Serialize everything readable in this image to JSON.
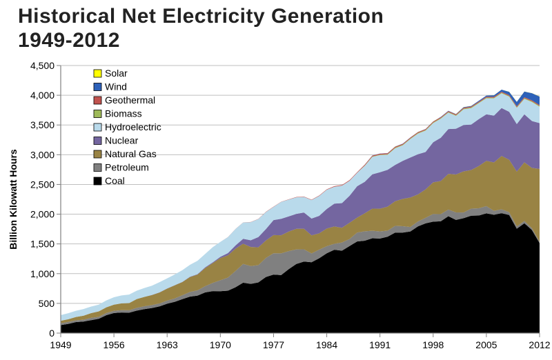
{
  "title": "Historical Net Electricity Generation\n1949-2012",
  "chart": {
    "type": "area",
    "background_color": "#ffffff",
    "plot_background_color": "#ffffff",
    "ylabel": "Billion Kilowatt Hours",
    "label_fontsize": 14,
    "label_fontweight": "bold",
    "xlim": [
      1949,
      2012
    ],
    "ylim": [
      0,
      4500
    ],
    "ytick_step": 500,
    "xtick_step": 7,
    "grid_color": "#bfbfbf",
    "axis_color": "#808080",
    "tick_color": "#808080",
    "tick_font": "Arial",
    "tick_fontsize": 14,
    "years": [
      1949,
      1950,
      1951,
      1952,
      1953,
      1954,
      1955,
      1956,
      1957,
      1958,
      1959,
      1960,
      1961,
      1962,
      1963,
      1964,
      1965,
      1966,
      1967,
      1968,
      1969,
      1970,
      1971,
      1972,
      1973,
      1974,
      1975,
      1976,
      1977,
      1978,
      1979,
      1980,
      1981,
      1982,
      1983,
      1984,
      1985,
      1986,
      1987,
      1988,
      1989,
      1990,
      1991,
      1992,
      1993,
      1994,
      1995,
      1996,
      1997,
      1998,
      1999,
      2000,
      2001,
      2002,
      2003,
      2004,
      2005,
      2006,
      2007,
      2008,
      2009,
      2010,
      2011,
      2012
    ],
    "series": [
      {
        "name": "Coal",
        "color": "#000000",
        "values": [
          135,
          155,
          185,
          195,
          218,
          240,
          301,
          338,
          346,
          344,
          378,
          403,
          422,
          450,
          494,
          526,
          571,
          613,
          630,
          685,
          706,
          704,
          713,
          771,
          848,
          828,
          853,
          944,
          985,
          976,
          1075,
          1162,
          1203,
          1192,
          1259,
          1342,
          1402,
          1386,
          1464,
          1541,
          1554,
          1594,
          1591,
          1621,
          1690,
          1691,
          1709,
          1795,
          1845,
          1874,
          1881,
          1966,
          1904,
          1933,
          1974,
          1978,
          2013,
          1991,
          2016,
          1986,
          1756,
          1847,
          1733,
          1514
        ]
      },
      {
        "name": "Petroleum",
        "color": "#808080",
        "values": [
          30,
          34,
          29,
          30,
          38,
          32,
          37,
          36,
          40,
          40,
          47,
          48,
          49,
          49,
          52,
          57,
          65,
          79,
          89,
          104,
          138,
          184,
          220,
          274,
          314,
          300,
          289,
          320,
          358,
          365,
          304,
          246,
          206,
          147,
          145,
          120,
          100,
          137,
          118,
          149,
          158,
          127,
          120,
          101,
          113,
          106,
          75,
          82,
          93,
          129,
          119,
          111,
          125,
          95,
          119,
          121,
          123,
          64,
          66,
          46,
          39,
          37,
          30,
          23
        ]
      },
      {
        "name": "Natural Gas",
        "color": "#998344",
        "values": [
          43,
          45,
          57,
          68,
          80,
          94,
          95,
          104,
          114,
          120,
          147,
          158,
          169,
          184,
          202,
          220,
          222,
          251,
          265,
          304,
          333,
          373,
          374,
          376,
          341,
          320,
          300,
          295,
          306,
          305,
          329,
          346,
          346,
          305,
          274,
          297,
          292,
          249,
          273,
          253,
          303,
          373,
          381,
          405,
          415,
          460,
          496,
          456,
          479,
          532,
          557,
          601,
          639,
          691,
          650,
          710,
          761,
          816,
          897,
          883,
          921,
          988,
          1014,
          1225
        ]
      },
      {
        "name": "Nuclear",
        "color": "#7466a0",
        "values": [
          0,
          0,
          0,
          0,
          0,
          0,
          0,
          0,
          0.1,
          0.2,
          0.2,
          0.5,
          1.7,
          2.3,
          3.2,
          3.3,
          3.7,
          5.5,
          7.7,
          12.5,
          13.9,
          21.8,
          38,
          54,
          83,
          114,
          173,
          191,
          251,
          276,
          255,
          251,
          273,
          283,
          294,
          328,
          384,
          414,
          455,
          527,
          529,
          577,
          613,
          619,
          610,
          640,
          673,
          675,
          629,
          674,
          728,
          754,
          769,
          780,
          764,
          789,
          782,
          787,
          806,
          806,
          799,
          807,
          790,
          769
        ]
      },
      {
        "name": "Hydroelectric",
        "color": "#b9daeb",
        "values": [
          95,
          101,
          105,
          112,
          111,
          113,
          116,
          125,
          133,
          144,
          141,
          149,
          155,
          172,
          169,
          180,
          197,
          199,
          225,
          225,
          254,
          251,
          269,
          276,
          274,
          304,
          303,
          287,
          223,
          284,
          283,
          279,
          263,
          312,
          335,
          324,
          284,
          294,
          252,
          226,
          269,
          293,
          289,
          254,
          281,
          260,
          311,
          347,
          359,
          323,
          320,
          276,
          217,
          264,
          276,
          268,
          270,
          289,
          248,
          255,
          273,
          260,
          319,
          276
        ]
      },
      {
        "name": "Biomass",
        "color": "#9fba59",
        "values": [
          0,
          0,
          0,
          0,
          0,
          0,
          0,
          0,
          0,
          0,
          0,
          0,
          0,
          0,
          0,
          0,
          0,
          0,
          0,
          0,
          0,
          0,
          0,
          0,
          0,
          0,
          0,
          0,
          0,
          0,
          0,
          0,
          0,
          0,
          0,
          0,
          0,
          0,
          0,
          0,
          5,
          6,
          7,
          8,
          9,
          10,
          10,
          10,
          10,
          10,
          11,
          11,
          10,
          12,
          12,
          12,
          12,
          12,
          12,
          12,
          12,
          13,
          13,
          14
        ]
      },
      {
        "name": "Geothermal",
        "color": "#c1524e",
        "values": [
          0,
          0,
          0,
          0,
          0,
          0,
          0,
          0,
          0,
          0,
          0,
          0.03,
          0.1,
          0.1,
          0.2,
          0.2,
          0.2,
          0.2,
          0.3,
          0.4,
          0.6,
          0.5,
          0.5,
          1.5,
          2,
          2.5,
          3.2,
          3.6,
          3.6,
          3,
          3.9,
          5,
          5.7,
          5,
          6.1,
          7.7,
          9.3,
          10.3,
          10.8,
          10.3,
          14.6,
          15.4,
          15.9,
          16.1,
          16.8,
          15.5,
          13.4,
          14.3,
          14.7,
          14.8,
          14.8,
          14.1,
          13.7,
          14.5,
          14.4,
          14.8,
          14.7,
          14.6,
          14.6,
          14.8,
          15,
          15.2,
          15.3,
          15.6
        ]
      },
      {
        "name": "Wind",
        "color": "#2d61b9",
        "values": [
          0,
          0,
          0,
          0,
          0,
          0,
          0,
          0,
          0,
          0,
          0,
          0,
          0,
          0,
          0,
          0,
          0,
          0,
          0,
          0,
          0,
          0,
          0,
          0,
          0,
          0,
          0,
          0,
          0,
          0,
          0,
          0,
          0,
          0,
          0,
          0,
          0,
          0,
          0,
          0,
          2,
          2.8,
          2.9,
          2.9,
          3,
          3.4,
          3.2,
          3.2,
          3.3,
          3,
          4.5,
          5.6,
          6.7,
          10.4,
          11.2,
          14.1,
          17.8,
          26.6,
          34.4,
          55.4,
          73.9,
          94.7,
          120.2,
          140.8
        ]
      },
      {
        "name": "Solar",
        "color": "#ffff00",
        "values": [
          0,
          0,
          0,
          0,
          0,
          0,
          0,
          0,
          0,
          0,
          0,
          0,
          0,
          0,
          0,
          0,
          0,
          0,
          0,
          0,
          0,
          0,
          0,
          0,
          0,
          0,
          0,
          0,
          0,
          0,
          0,
          0,
          0,
          0,
          0,
          0,
          0,
          0,
          0,
          0,
          0.3,
          0.4,
          0.5,
          0.4,
          0.5,
          0.5,
          0.5,
          0.5,
          0.5,
          0.5,
          0.5,
          0.5,
          0.5,
          0.6,
          0.5,
          0.6,
          0.6,
          0.5,
          0.6,
          0.9,
          0.9,
          1.2,
          1.8,
          4.3
        ]
      }
    ],
    "legend": {
      "position": "inside-top-left",
      "box_size": 11,
      "font_size": 14,
      "stroke": "#000000",
      "order": [
        "Solar",
        "Wind",
        "Geothermal",
        "Biomass",
        "Hydroelectric",
        "Nuclear",
        "Natural Gas",
        "Petroleum",
        "Coal"
      ],
      "labels": {
        "Solar": "Solar",
        "Wind": "Wind",
        "Geothermal": "Geothermal",
        "Biomass": "Biomass",
        "Hydroelectric": "Hydroelectric",
        "Nuclear": "Nuclear",
        "Natural Gas": "Natural Gas",
        "Petroleum": "Petroleum",
        "Coal": "Coal"
      }
    }
  }
}
